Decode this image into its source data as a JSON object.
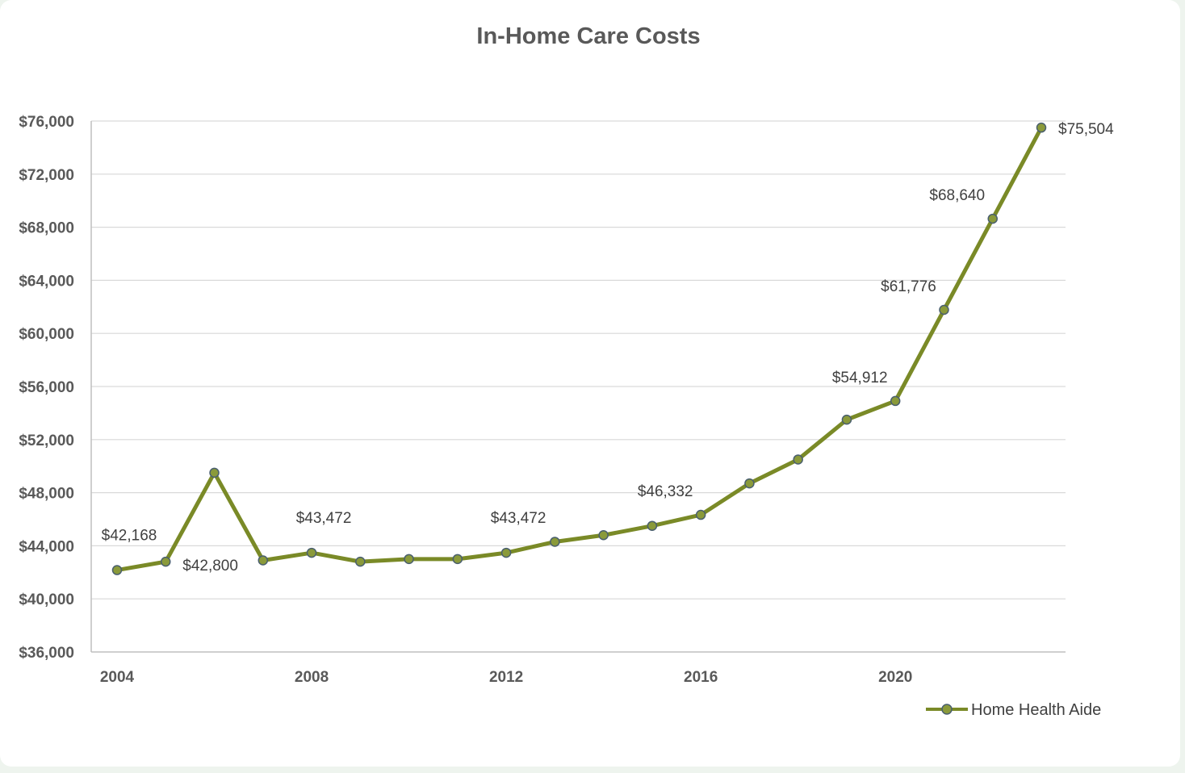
{
  "chart_data": {
    "type": "line",
    "title": "In-Home Care Costs",
    "xlabel": "",
    "ylabel": "",
    "ylim": [
      36000,
      76000
    ],
    "xlim": [
      2004,
      2023
    ],
    "y_ticks": [
      36000,
      40000,
      44000,
      48000,
      52000,
      56000,
      60000,
      64000,
      68000,
      72000,
      76000
    ],
    "y_tick_labels": [
      "$36,000",
      "$40,000",
      "$44,000",
      "$48,000",
      "$52,000",
      "$56,000",
      "$60,000",
      "$64,000",
      "$68,000",
      "$72,000",
      "$76,000"
    ],
    "x_ticks": [
      2004,
      2008,
      2012,
      2016,
      2020
    ],
    "x_tick_labels": [
      "2004",
      "2008",
      "2012",
      "2016",
      "2020"
    ],
    "grid": true,
    "legend": "bottom-right",
    "series": [
      {
        "name": "Home Health Aide",
        "color": "#7a8a27",
        "marker_color": "#8a9a3a",
        "marker_edge": "#4a5f6e",
        "x": [
          2004,
          2005,
          2006,
          2007,
          2008,
          2009,
          2010,
          2011,
          2012,
          2013,
          2014,
          2015,
          2016,
          2017,
          2018,
          2019,
          2020,
          2021,
          2022,
          2023
        ],
        "values": [
          42168,
          42800,
          49500,
          42900,
          43472,
          42800,
          43000,
          43000,
          43472,
          44300,
          44800,
          45500,
          46332,
          48700,
          50500,
          53500,
          54912,
          61776,
          68640,
          75504
        ]
      }
    ],
    "data_labels": [
      {
        "x": 2004,
        "text": "$42,168",
        "pos": "above"
      },
      {
        "x": 2005,
        "text": "$42,800",
        "pos": "below-right"
      },
      {
        "x": 2008,
        "text": "$43,472",
        "pos": "above"
      },
      {
        "x": 2012,
        "text": "$43,472",
        "pos": "above"
      },
      {
        "x": 2016,
        "text": "$46,332",
        "pos": "above-left"
      },
      {
        "x": 2020,
        "text": "$54,912",
        "pos": "above-left"
      },
      {
        "x": 2021,
        "text": "$61,776",
        "pos": "above-left"
      },
      {
        "x": 2022,
        "text": "$68,640",
        "pos": "above-left"
      },
      {
        "x": 2023,
        "text": "$75,504",
        "pos": "right"
      }
    ]
  }
}
